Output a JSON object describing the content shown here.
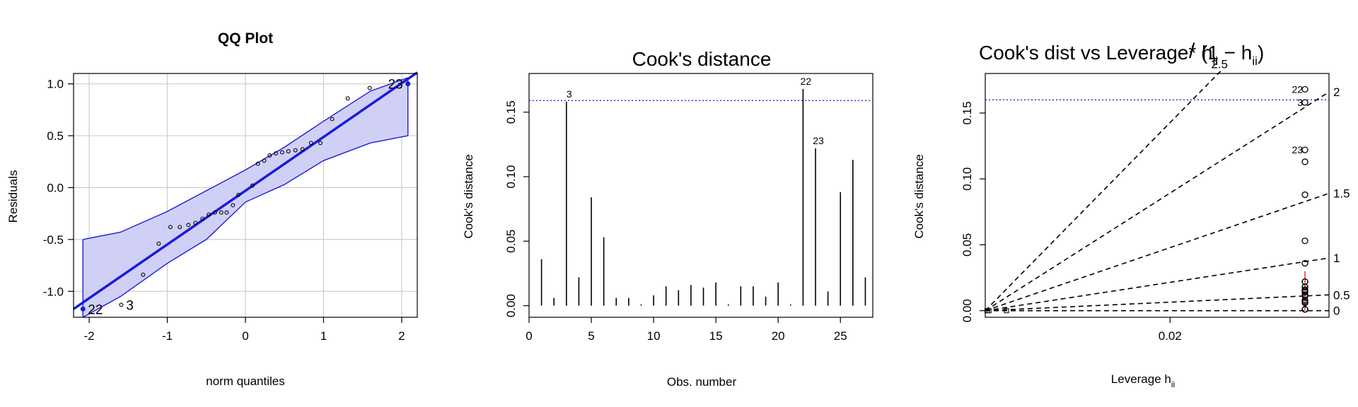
{
  "chart_data": [
    {
      "type": "scatter",
      "title": "QQ Plot",
      "xlabel": "norm quantiles",
      "ylabel": "Residuals",
      "xlim": [
        -2.2,
        2.2
      ],
      "ylim": [
        -1.25,
        1.1
      ],
      "grid": true,
      "x_ticks": [
        "-2",
        "-1",
        "0",
        "1",
        "2"
      ],
      "y_ticks": [
        "-1.0",
        "-0.5",
        "0.0",
        "0.5",
        "1.0"
      ],
      "x_tick_values": [
        -2,
        -1,
        0,
        1,
        2
      ],
      "y_tick_values": [
        -1.0,
        -0.5,
        0.0,
        0.5,
        1.0
      ],
      "colors": {
        "band_fill": "#d0d0f6",
        "band_edge": "#1a1add",
        "line": "#1a1add",
        "grid": "#cccccc"
      },
      "points": {
        "x": [
          -1.59,
          -1.31,
          -1.11,
          -0.96,
          -0.84,
          -0.73,
          -0.64,
          -0.55,
          -0.47,
          -0.39,
          -0.31,
          -0.24,
          -0.16,
          -0.09,
          0.09,
          0.16,
          0.24,
          0.31,
          0.39,
          0.47,
          0.55,
          0.64,
          0.73,
          0.84,
          0.96,
          1.11,
          1.31,
          1.59
        ],
        "y": [
          -1.13,
          -0.84,
          -0.54,
          -0.38,
          -0.38,
          -0.36,
          -0.34,
          -0.3,
          -0.26,
          -0.24,
          -0.24,
          -0.24,
          -0.17,
          -0.07,
          0.02,
          0.23,
          0.26,
          0.31,
          0.33,
          0.34,
          0.35,
          0.36,
          0.37,
          0.43,
          0.43,
          0.66,
          0.86,
          0.96
        ]
      },
      "highlight_points": {
        "x": [
          -2.08,
          2.08
        ],
        "y": [
          -1.17,
          1.0
        ]
      },
      "fit_line": {
        "x": [
          -2.2,
          2.2
        ],
        "y": [
          -1.17,
          1.11
        ]
      },
      "band_upper": {
        "x": [
          -2.08,
          -1.6,
          -1.0,
          -0.5,
          0.0,
          0.5,
          1.0,
          1.6,
          2.08
        ],
        "y": [
          -0.5,
          -0.43,
          -0.23,
          -0.03,
          0.17,
          0.39,
          0.64,
          0.93,
          1.06
        ]
      },
      "band_lower": {
        "x": [
          -2.08,
          -1.6,
          -1.0,
          -0.5,
          0.0,
          0.5,
          1.0,
          1.6,
          2.08
        ],
        "y": [
          -1.25,
          -1.05,
          -0.73,
          -0.5,
          -0.14,
          0.03,
          0.26,
          0.43,
          0.5
        ]
      },
      "annotations": [
        {
          "text": "22",
          "x": -2.08,
          "y": -1.17,
          "pos": "right"
        },
        {
          "text": "3",
          "x": -1.59,
          "y": -1.13,
          "pos": "right"
        },
        {
          "text": "23",
          "x": 2.08,
          "y": 1.0,
          "pos": "left"
        }
      ]
    },
    {
      "type": "bar",
      "title": "Cook's distance",
      "xlabel": "Obs. number",
      "ylabel": "Cook's distance",
      "xlim": [
        0,
        27.6
      ],
      "ylim": [
        -0.009,
        0.18
      ],
      "x_ticks": [
        "0",
        "5",
        "10",
        "15",
        "20",
        "25"
      ],
      "y_ticks": [
        "0.00",
        "0.05",
        "0.10",
        "0.15"
      ],
      "x_tick_values": [
        0,
        5,
        10,
        15,
        20,
        25
      ],
      "y_tick_values": [
        0.0,
        0.05,
        0.1,
        0.15
      ],
      "threshold": 0.159,
      "colors": {
        "threshold": "#2222dd",
        "bar": "#000000"
      },
      "x": [
        1,
        2,
        3,
        4,
        5,
        6,
        7,
        8,
        9,
        10,
        11,
        12,
        13,
        14,
        15,
        16,
        17,
        18,
        19,
        20,
        21,
        22,
        23,
        24,
        25,
        26,
        27
      ],
      "values": [
        0.036,
        0.006,
        0.158,
        0.022,
        0.084,
        0.053,
        0.006,
        0.006,
        0.001,
        0.008,
        0.015,
        0.012,
        0.016,
        0.014,
        0.018,
        0.001,
        0.015,
        0.015,
        0.007,
        0.018,
        0.001,
        0.168,
        0.122,
        0.011,
        0.088,
        0.113,
        0.022
      ],
      "annotations": [
        {
          "text": "3",
          "x": 3,
          "y": 0.158
        },
        {
          "text": "22",
          "x": 22,
          "y": 0.168
        },
        {
          "text": "23",
          "x": 23,
          "y": 0.122
        }
      ]
    },
    {
      "type": "scatter",
      "title": "Cook's dist vs Leverage* h",
      "title_sub": "ii",
      "title_frac": "(1 − h",
      "title_frac_sub": "ii",
      "title_frac_end": ")",
      "xlabel": "Leverage  h",
      "xlabel_sub": "ii",
      "ylabel": "Cook's distance",
      "xlim": [
        0.0,
        0.0372
      ],
      "ylim": [
        -0.005,
        0.18
      ],
      "x_ticks": [
        "0.02"
      ],
      "y_ticks": [
        "0.00",
        "0.05",
        "0.10",
        "0.15"
      ],
      "x_tick_values": [
        0.02
      ],
      "y_tick_values": [
        0.0,
        0.05,
        0.1,
        0.15
      ],
      "threshold": 0.16,
      "colors": {
        "threshold": "#2222dd",
        "smooth": "#dd4444",
        "points": "#000000"
      },
      "contours": [
        {
          "label": "2.5",
          "x_end": 0.0255,
          "y_end": 0.182
        },
        {
          "label": "2",
          "x_end": 0.0372,
          "y_end": 0.166
        },
        {
          "label": "1.5",
          "x_end": 0.0372,
          "y_end": 0.089
        },
        {
          "label": "1",
          "x_end": 0.0372,
          "y_end": 0.04
        },
        {
          "label": "0.5",
          "x_end": 0.0372,
          "y_end": 0.012
        },
        {
          "label": "0",
          "x_end": 0.0372,
          "y_end": 0.0
        }
      ],
      "points": {
        "x": [
          0.0346,
          0.0346,
          0.0346,
          0.0346,
          0.0346,
          0.0346,
          0.0346,
          0.0346,
          0.0346,
          0.0346,
          0.0346,
          0.0346,
          0.0346,
          0.0346,
          0.0346,
          0.0346,
          0.0346,
          0.0346,
          0.0346,
          0.0346,
          0.0346,
          0.0346,
          0.0346,
          0.0346,
          0.0346
        ],
        "y": [
          0.168,
          0.158,
          0.122,
          0.113,
          0.088,
          0.053,
          0.036,
          0.022,
          0.022,
          0.018,
          0.018,
          0.016,
          0.015,
          0.015,
          0.014,
          0.012,
          0.011,
          0.008,
          0.007,
          0.006,
          0.006,
          0.006,
          0.001,
          0.001,
          0.001
        ]
      },
      "left_markers": {
        "x": [
          0.0002,
          0.0004,
          0.0023
        ],
        "y": [
          0.0,
          0.0,
          0.0
        ]
      },
      "annotations": [
        {
          "text": "22",
          "x": 0.0346,
          "y": 0.168
        },
        {
          "text": "3",
          "x": 0.0346,
          "y": 0.158
        },
        {
          "text": "23",
          "x": 0.0346,
          "y": 0.122
        }
      ]
    }
  ]
}
